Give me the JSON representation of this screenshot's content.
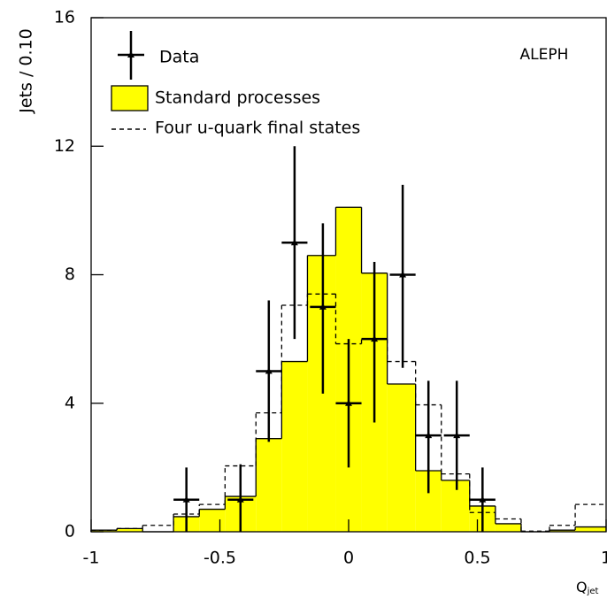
{
  "chart_data": {
    "type": "histogram",
    "ylabel": "Jets / 0.10",
    "xlabel": "Q",
    "xlabel_subscript": "jet",
    "annotation": "ALEPH",
    "xlim": [
      -1,
      1
    ],
    "xticks": [
      -1,
      -0.5,
      0,
      0.5,
      1
    ],
    "ylim": [
      0,
      16
    ],
    "yticks": [
      0,
      4,
      8,
      12,
      16
    ],
    "bins": [
      -1,
      -0.9,
      -0.8,
      -0.68,
      -0.58,
      -0.48,
      -0.36,
      -0.26,
      -0.16,
      -0.05,
      0.05,
      0.15,
      0.26,
      0.36,
      0.47,
      0.57,
      0.67,
      0.78,
      0.88,
      1
    ],
    "series": [
      {
        "name": "Standard processes",
        "color": "#ffff00",
        "style": "filled",
        "values": [
          0.05,
          0.1,
          0,
          0.47,
          0.7,
          1.1,
          2.9,
          5.3,
          8.6,
          10.1,
          8.05,
          4.6,
          1.9,
          1.6,
          0.8,
          0.25,
          0,
          0.05,
          0.15
        ]
      },
      {
        "name": "Four u-quark final states",
        "color": "#000000",
        "style": "dashed",
        "values": [
          0.05,
          0.1,
          0.2,
          0.55,
          0.85,
          2.05,
          3.7,
          7.05,
          7.4,
          5.85,
          6.0,
          5.3,
          3.95,
          1.8,
          0.6,
          0.4,
          0.02,
          0.2,
          0.85
        ]
      }
    ],
    "points": {
      "name": "Data",
      "color": "#000000",
      "x": [
        -0.63,
        -0.42,
        -0.31,
        -0.21,
        -0.1,
        0,
        0.1,
        0.21,
        0.31,
        0.42,
        0.52
      ],
      "y": [
        1,
        1,
        5,
        9,
        7,
        4,
        6,
        8,
        3,
        3,
        1
      ],
      "y_low": [
        0,
        0,
        2.8,
        6.0,
        4.3,
        2.0,
        3.4,
        5.1,
        1.2,
        1.3,
        0
      ],
      "y_high": [
        2.0,
        2.1,
        7.2,
        12,
        9.6,
        6.0,
        8.4,
        10.8,
        4.7,
        4.7,
        2.0
      ],
      "xerr": 0.05
    }
  }
}
